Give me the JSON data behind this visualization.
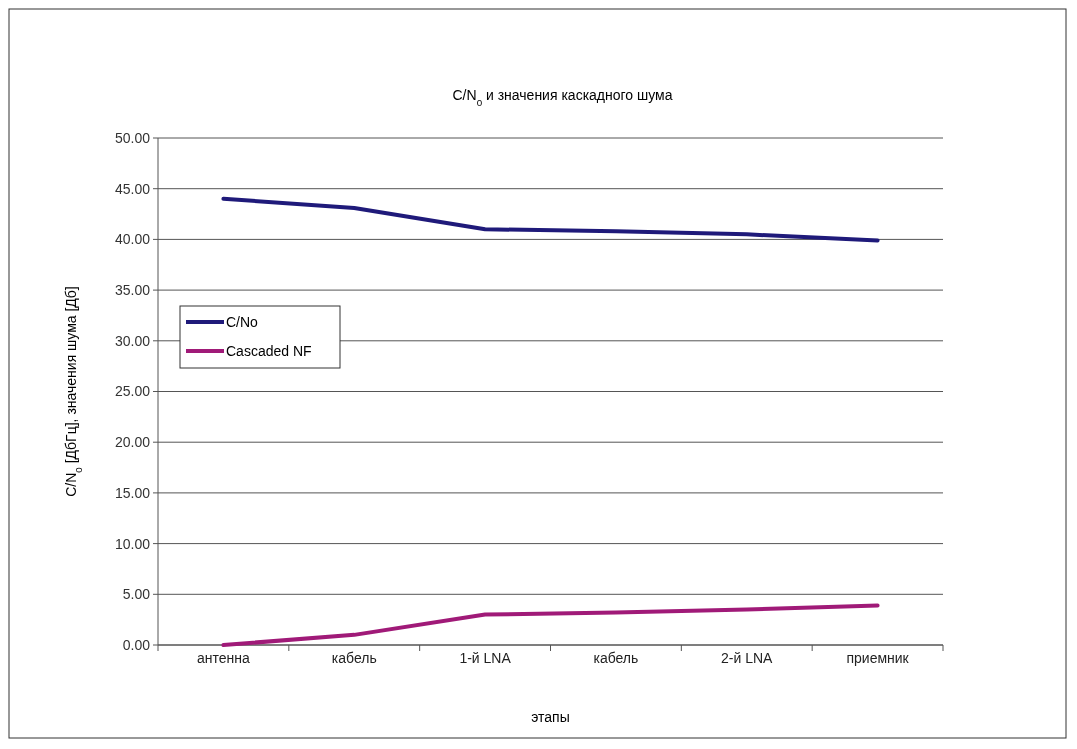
{
  "chart_data": {
    "type": "line",
    "title": "C/N$_{0}$  и значения каскадного шума",
    "xlabel": "этапы",
    "ylabel": "C/N$_{0}$ [ДбГц], значения шума [Дб]",
    "categories": [
      "антенна",
      "кабель",
      "1-й LNA",
      "кабель",
      "2-й LNA",
      "приемник"
    ],
    "series": [
      {
        "name": "C/No",
        "color": "#1f1a7a",
        "values": [
          44.0,
          43.1,
          41.0,
          40.8,
          40.5,
          39.9
        ]
      },
      {
        "name": "Cascaded NF",
        "color": "#a01a78",
        "values": [
          0.0,
          1.0,
          3.0,
          3.2,
          3.5,
          3.9
        ]
      }
    ],
    "ylim": [
      0,
      50
    ],
    "yticks": [
      {
        "value": 0,
        "label": "0.00"
      },
      {
        "value": 5,
        "label": "5.00"
      },
      {
        "value": 10,
        "label": "10.00"
      },
      {
        "value": 15,
        "label": "15.00"
      },
      {
        "value": 20,
        "label": "20.00"
      },
      {
        "value": 25,
        "label": "25.00"
      },
      {
        "value": 30,
        "label": "30.00"
      },
      {
        "value": 35,
        "label": "35.00"
      },
      {
        "value": 40,
        "label": "40.00"
      },
      {
        "value": 45,
        "label": "45.00"
      },
      {
        "value": 50,
        "label": "50.00"
      }
    ],
    "grid": "y",
    "legend": "left",
    "marker": "none",
    "line_style": "solid"
  }
}
